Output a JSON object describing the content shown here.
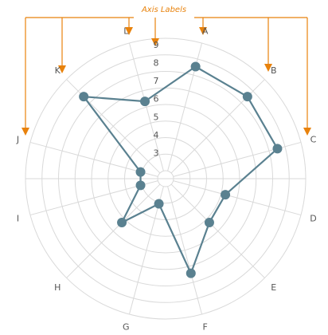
{
  "chart_data": {
    "type": "radar",
    "annotation": "Axis Labels",
    "categories": [
      "A",
      "B",
      "C",
      "D",
      "E",
      "F",
      "G",
      "H",
      "I",
      "J",
      "K",
      "L"
    ],
    "radial_ticks": [
      "3",
      "4",
      "5",
      "6",
      "7",
      "8",
      "9"
    ],
    "rlim": [
      2,
      9
    ],
    "series": [
      {
        "values": [
          8,
          8,
          8,
          5,
          5,
          7,
          3,
          5,
          3,
          3,
          8,
          6
        ]
      }
    ],
    "grid": true,
    "colors": {
      "series": "#5a8190",
      "annotation": "#e8820c",
      "grid": "#d9d9d9",
      "text": "#555555"
    }
  }
}
